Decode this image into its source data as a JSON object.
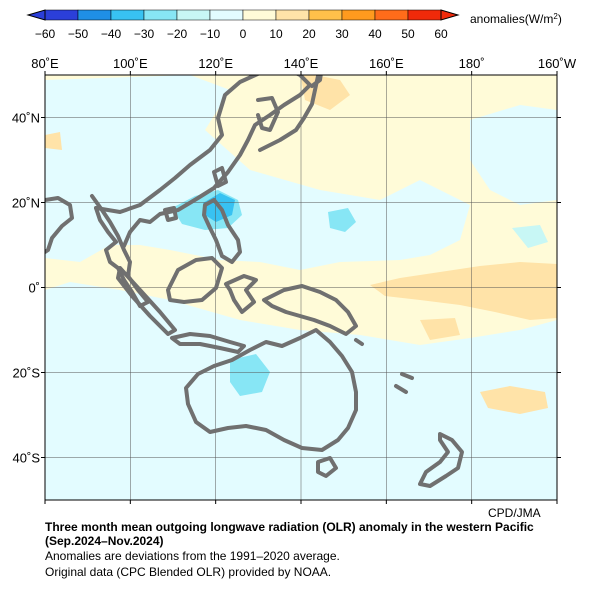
{
  "colorbar": {
    "ticks": [
      "−60",
      "−50",
      "−40",
      "−30",
      "−20",
      "−10",
      "0",
      "10",
      "20",
      "30",
      "40",
      "50",
      "60"
    ],
    "unit_label": "anomalies(W/m",
    "unit_sup": "2",
    "unit_close": ")",
    "bins": [
      {
        "range": [
          -60,
          -50
        ],
        "color": "#2b3fd9"
      },
      {
        "range": [
          -50,
          -40
        ],
        "color": "#1f8fe6"
      },
      {
        "range": [
          -40,
          -30
        ],
        "color": "#38c2f2"
      },
      {
        "range": [
          -30,
          -20
        ],
        "color": "#87e6f5"
      },
      {
        "range": [
          -20,
          -10
        ],
        "color": "#c8f7f5"
      },
      {
        "range": [
          -10,
          0
        ],
        "color": "#e3fcff"
      },
      {
        "range": [
          0,
          10
        ],
        "color": "#fffbd8"
      },
      {
        "range": [
          10,
          20
        ],
        "color": "#ffe3a8"
      },
      {
        "range": [
          20,
          30
        ],
        "color": "#ffc04a"
      },
      {
        "range": [
          30,
          40
        ],
        "color": "#ff9a1e"
      },
      {
        "range": [
          40,
          50
        ],
        "color": "#ff6c1a"
      },
      {
        "range": [
          50,
          60
        ],
        "color": "#f02a0a"
      }
    ]
  },
  "map": {
    "extent": {
      "lon": [
        80,
        200
      ],
      "lat": [
        -50,
        50
      ]
    },
    "lon_labels": [
      "80˚E",
      "100˚E",
      "120˚E",
      "140˚E",
      "160˚E",
      "180˚",
      "160˚W"
    ],
    "lat_labels": [
      "40˚N",
      "20˚N",
      "0˚",
      "20˚S",
      "40˚S"
    ],
    "coast_color": "#707070",
    "background_color": "#fffbd8"
  },
  "credit": "CPD/JMA",
  "caption": {
    "title": "Three month mean outgoing longwave radiation (OLR) anomaly in the western Pacific",
    "period": "(Sep.2024–Nov.2024)",
    "note1": "Anomalies are deviations from the 1991–2020 average.",
    "note2": "Original data (CPC Blended OLR) provided by NOAA."
  }
}
